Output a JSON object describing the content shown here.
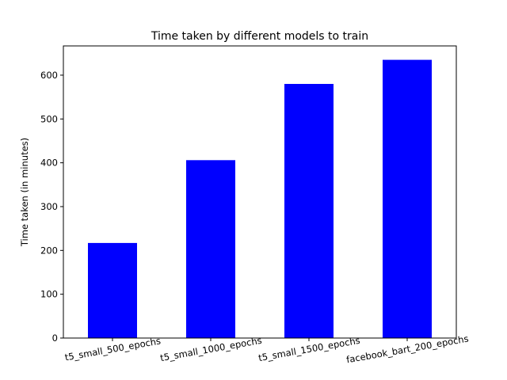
{
  "chart_data": {
    "type": "bar",
    "title": "Time taken by different models to train",
    "xlabel": "",
    "ylabel": "Time taken (in minutes)",
    "categories": [
      "t5_small_500_epochs",
      "t5_small_1000_epochs",
      "t5_small_1500_epochs",
      "facebook_bart_200_epochs"
    ],
    "values": [
      217,
      406,
      580,
      635
    ],
    "ylim": [
      0,
      666.75
    ],
    "yticks": [
      0,
      100,
      200,
      300,
      400,
      500,
      600
    ],
    "bar_color": "#0000ff",
    "xtick_rotation_deg": 10,
    "grid": false
  }
}
